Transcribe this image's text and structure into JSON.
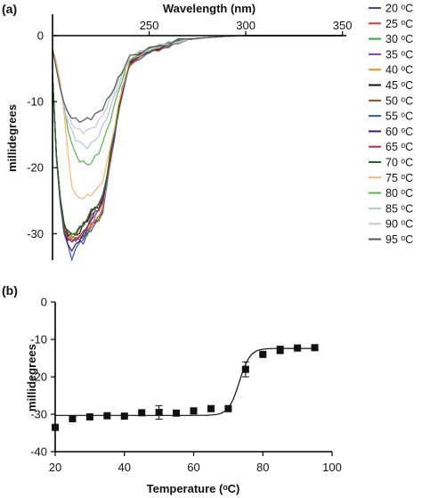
{
  "chart_data": [
    {
      "panel": "(a)",
      "type": "line",
      "xlabel": "Wavelength (nm)",
      "ylabel": "millidegrees",
      "xlim": [
        200,
        352
      ],
      "ylim": [
        -34,
        1.5
      ],
      "xticks": [
        "250",
        "300",
        "350"
      ],
      "yticks": [
        "0",
        "-10",
        "-20",
        "-30"
      ],
      "x": [
        200,
        202,
        204,
        206,
        208,
        210,
        212,
        214,
        216,
        218,
        220,
        222,
        224,
        226,
        228,
        230,
        232,
        234,
        236,
        238,
        240,
        245,
        250,
        255,
        260,
        265,
        270,
        280,
        290,
        300,
        320,
        340,
        350
      ],
      "legend_position": "right",
      "series": [
        {
          "name": "20 ᵒC",
          "color": "#3e4a99",
          "values": [
            -6,
            -18,
            -25,
            -29,
            -30.8,
            -30.9,
            -30.9,
            -30.8,
            -31.4,
            -30.2,
            -29.3,
            -28.5,
            -28.1,
            -26.5,
            -23,
            -19,
            -15.5,
            -12,
            -9,
            -6.5,
            -4.5,
            -3.3,
            -2.6,
            -2.1,
            -1.5,
            -1,
            -0.6,
            -0.3,
            -0.1,
            0,
            0,
            0,
            0
          ]
        },
        {
          "name": "25 ᵒC",
          "color": "#d43b2c",
          "values": [
            -6,
            -18,
            -25,
            -29,
            -30.6,
            -30.8,
            -30.7,
            -30.6,
            -30.6,
            -30.1,
            -28.8,
            -28.2,
            -27.8,
            -26.2,
            -22.8,
            -18.8,
            -15.3,
            -11.8,
            -8.8,
            -6.4,
            -4.4,
            -3.2,
            -2.5,
            -2,
            -1.5,
            -1,
            -0.6,
            -0.3,
            -0.1,
            0,
            0,
            0,
            0
          ]
        },
        {
          "name": "30 ᵒC",
          "color": "#3aa23a",
          "values": [
            -6,
            -18,
            -25,
            -29,
            -30.5,
            -30.6,
            -30.6,
            -30.5,
            -30.5,
            -30,
            -28.7,
            -28.1,
            -27.7,
            -26.1,
            -22.7,
            -18.7,
            -15.2,
            -11.7,
            -8.7,
            -6.3,
            -4.3,
            -3.1,
            -2.4,
            -1.9,
            -1.4,
            -0.9,
            -0.6,
            -0.3,
            -0.1,
            0,
            0,
            0,
            0
          ]
        },
        {
          "name": "35 ᵒC",
          "color": "#8a3fa8",
          "values": [
            -6,
            -18,
            -25,
            -29.5,
            -31,
            -31,
            -30.8,
            -30.7,
            -30.4,
            -29.8,
            -28.6,
            -28,
            -27.6,
            -26,
            -22.6,
            -18.6,
            -15.1,
            -11.6,
            -8.6,
            -6.2,
            -4.3,
            -3.1,
            -2.4,
            -1.9,
            -1.4,
            -0.9,
            -0.6,
            -0.3,
            -0.1,
            0,
            0,
            0,
            0
          ]
        },
        {
          "name": "40 ᵒC",
          "color": "#f28e1c",
          "values": [
            -6,
            -18,
            -25,
            -29,
            -30.3,
            -30.5,
            -30.4,
            -30.3,
            -30.2,
            -29.6,
            -28.4,
            -27.8,
            -27.4,
            -25.8,
            -22.5,
            -18.5,
            -15,
            -11.5,
            -8.5,
            -6.2,
            -4.2,
            -3,
            -2.3,
            -1.8,
            -1.4,
            -0.9,
            -0.5,
            -0.3,
            -0.1,
            0,
            0,
            0,
            0
          ]
        },
        {
          "name": "45 ᵒC",
          "color": "#111111",
          "values": [
            -6,
            -18,
            -24.5,
            -28.5,
            -30,
            -30.3,
            -30.1,
            -29.8,
            -28.6,
            -27.9,
            -26.8,
            -26.2,
            -25.8,
            -24.5,
            -21.5,
            -18,
            -14.8,
            -11.4,
            -8.4,
            -6.1,
            -4.1,
            -3,
            -2.3,
            -1.8,
            -1.3,
            -0.9,
            -0.5,
            -0.3,
            -0.1,
            0,
            0,
            0,
            0
          ]
        },
        {
          "name": "50 ᵒC",
          "color": "#8b4f16",
          "values": [
            -6,
            -18,
            -24.5,
            -28.5,
            -30,
            -30.1,
            -29.9,
            -29.5,
            -28.4,
            -27.6,
            -26.6,
            -26,
            -25.6,
            -24.3,
            -21.3,
            -17.9,
            -14.7,
            -11.3,
            -8.3,
            -6,
            -4.1,
            -2.9,
            -2.2,
            -1.8,
            -1.3,
            -0.9,
            -0.5,
            -0.3,
            -0.1,
            0,
            0,
            0,
            0
          ]
        },
        {
          "name": "55 ᵒC",
          "color": "#2857c4",
          "values": [
            -6,
            -18.5,
            -25.5,
            -30,
            -32,
            -33.6,
            -32.4,
            -31.4,
            -30.6,
            -29.4,
            -27.8,
            -27.1,
            -26.6,
            -25,
            -22,
            -18.3,
            -14.9,
            -11.5,
            -8.5,
            -6.1,
            -4.2,
            -3,
            -2.3,
            -1.8,
            -1.3,
            -0.9,
            -0.5,
            -0.3,
            -0.1,
            0,
            0,
            0,
            0
          ]
        },
        {
          "name": "60 ᵒC",
          "color": "#3a1e7a",
          "values": [
            -6,
            -18.2,
            -25.2,
            -29.6,
            -31.4,
            -32.6,
            -31.8,
            -30.8,
            -30.1,
            -29,
            -27.6,
            -26.9,
            -26.4,
            -24.8,
            -21.8,
            -18.2,
            -14.8,
            -11.4,
            -8.4,
            -6.1,
            -4.1,
            -2.9,
            -2.2,
            -1.8,
            -1.3,
            -0.9,
            -0.5,
            -0.3,
            -0.1,
            0,
            0,
            0,
            0
          ]
        },
        {
          "name": "65 ᵒC",
          "color": "#b0304a",
          "values": [
            -6,
            -18.2,
            -25,
            -29.2,
            -30.8,
            -31.2,
            -30.9,
            -30.4,
            -29.8,
            -28.8,
            -27.4,
            -26.7,
            -26.2,
            -24.6,
            -21.6,
            -18,
            -14.7,
            -11.3,
            -8.3,
            -6,
            -4.1,
            -2.9,
            -2.2,
            -1.7,
            -1.3,
            -0.9,
            -0.5,
            -0.3,
            -0.1,
            0,
            0,
            0,
            0
          ]
        },
        {
          "name": "70 ᵒC",
          "color": "#1c6b2a",
          "values": [
            -6,
            -18,
            -24.6,
            -28.6,
            -29.8,
            -30,
            -29.7,
            -29.2,
            -28.6,
            -27.8,
            -26.6,
            -26,
            -25.6,
            -24.2,
            -21.4,
            -17.8,
            -14.6,
            -11.2,
            -8.2,
            -5.9,
            -4,
            -2.9,
            -2.2,
            -1.7,
            -1.3,
            -0.8,
            -0.5,
            -0.3,
            -0.1,
            0,
            0,
            0,
            0
          ]
        },
        {
          "name": "75 ᵒC",
          "color": "#f6b56a",
          "values": [
            -2,
            -4,
            -7,
            -12,
            -18,
            -22.5,
            -24.4,
            -24.5,
            -24.5,
            -24.4,
            -24,
            -23.5,
            -23,
            -21.8,
            -19.6,
            -16.8,
            -13.8,
            -10.8,
            -8,
            -5.8,
            -3.9,
            -2.8,
            -2.1,
            -1.7,
            -1.2,
            -0.8,
            -0.5,
            -0.3,
            -0.1,
            0,
            0,
            0,
            0
          ]
        },
        {
          "name": "80 ᵒC",
          "color": "#5bb34a",
          "values": [
            -2,
            -5,
            -8,
            -11,
            -14,
            -16.5,
            -18,
            -18.8,
            -19.3,
            -19.5,
            -19.2,
            -18.5,
            -17.6,
            -16.2,
            -14.6,
            -12.6,
            -10.6,
            -8.6,
            -6.6,
            -5,
            -3.6,
            -2.7,
            -2.1,
            -1.6,
            -1.2,
            -0.8,
            -0.5,
            -0.3,
            -0.1,
            0,
            0,
            0,
            0
          ]
        },
        {
          "name": "85 ᵒC",
          "color": "#a9c8e8",
          "values": [
            -2,
            -5,
            -8,
            -11,
            -13,
            -14.5,
            -15.6,
            -16.2,
            -16.6,
            -16.8,
            -16.5,
            -15.8,
            -15,
            -13.8,
            -12.4,
            -10.8,
            -9.2,
            -7.6,
            -6,
            -4.6,
            -3.4,
            -2.6,
            -2,
            -1.6,
            -1.2,
            -0.8,
            -0.5,
            -0.3,
            -0.1,
            0,
            0,
            0,
            0
          ]
        },
        {
          "name": "90 ᵒC",
          "color": "#c8c8c8",
          "values": [
            -2,
            -5,
            -8,
            -10.5,
            -12,
            -13.2,
            -14,
            -14.4,
            -14.5,
            -14.4,
            -14.1,
            -13.6,
            -13,
            -12,
            -10.8,
            -9.5,
            -8.2,
            -6.9,
            -5.6,
            -4.4,
            -3.3,
            -2.5,
            -2,
            -1.6,
            -1.2,
            -0.8,
            -0.5,
            -0.3,
            -0.1,
            0,
            0,
            0,
            0
          ]
        },
        {
          "name": "95 ᵒC",
          "color": "#555555",
          "values": [
            -2,
            -5,
            -8,
            -10.5,
            -11.6,
            -12.3,
            -12.8,
            -12.9,
            -12.8,
            -12.7,
            -12.4,
            -12,
            -11.6,
            -10.9,
            -10,
            -8.9,
            -7.8,
            -6.6,
            -5.4,
            -4.3,
            -3.2,
            -2.5,
            -2,
            -1.6,
            -1.2,
            -0.8,
            -0.5,
            -0.3,
            -0.1,
            0,
            0,
            0,
            0
          ]
        }
      ]
    },
    {
      "panel": "(b)",
      "type": "scatter",
      "xlabel": "Temperature (ᵒC)",
      "ylabel": "millidegrees",
      "xlim": [
        20,
        100
      ],
      "ylim": [
        -40,
        0
      ],
      "xticks": [
        "20",
        "40",
        "60",
        "80",
        "100"
      ],
      "yticks": [
        "0",
        "-10",
        "-20",
        "-30",
        "-40"
      ],
      "points": [
        {
          "x": 20,
          "y": -33.5,
          "err": 0
        },
        {
          "x": 25,
          "y": -31.2,
          "err": 0
        },
        {
          "x": 30,
          "y": -30.7,
          "err": 0
        },
        {
          "x": 35,
          "y": -30.4,
          "err": 0
        },
        {
          "x": 40,
          "y": -30.5,
          "err": 0
        },
        {
          "x": 45,
          "y": -29.6,
          "err": 0
        },
        {
          "x": 50,
          "y": -29.5,
          "err": 1.8
        },
        {
          "x": 55,
          "y": -29.7,
          "err": 0
        },
        {
          "x": 60,
          "y": -29.1,
          "err": 0
        },
        {
          "x": 65,
          "y": -28.5,
          "err": 0
        },
        {
          "x": 70,
          "y": -28.5,
          "err": 0
        },
        {
          "x": 75,
          "y": -18.0,
          "err": 2.0
        },
        {
          "x": 80,
          "y": -14.0,
          "err": 0
        },
        {
          "x": 85,
          "y": -12.8,
          "err": 1.0
        },
        {
          "x": 90,
          "y": -12.3,
          "err": 0
        },
        {
          "x": 95,
          "y": -12.2,
          "err": 0
        }
      ],
      "fit": {
        "type": "sigmoid",
        "bottom": -30.3,
        "top": -12.4,
        "midpoint": 73.2,
        "slope": 1.55
      }
    }
  ]
}
